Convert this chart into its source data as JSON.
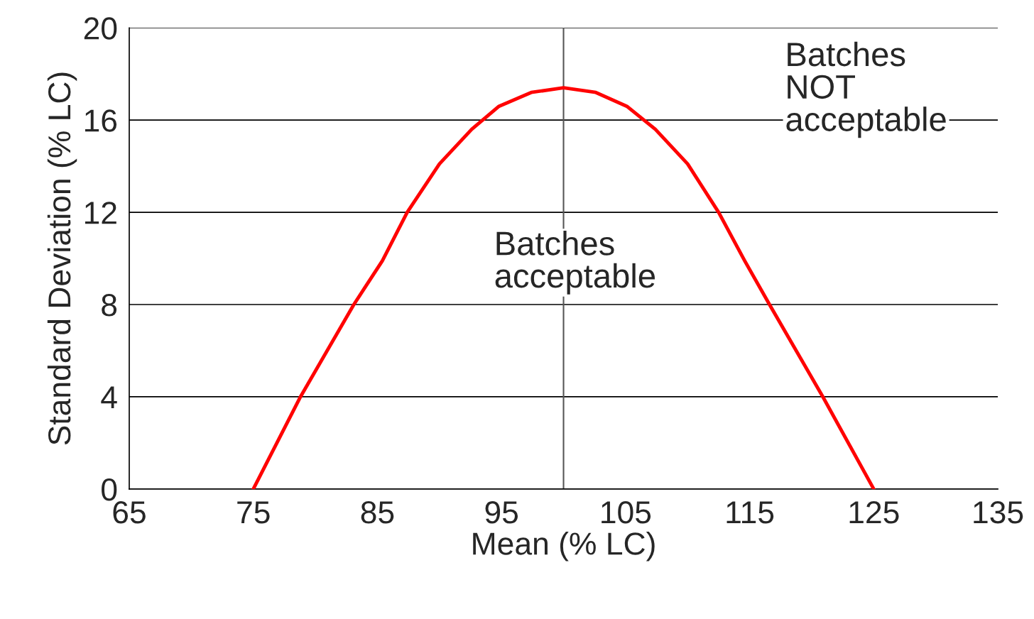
{
  "chart_data": {
    "type": "line",
    "xlabel": "Mean (% LC)",
    "ylabel": "Standard Deviation (% LC)",
    "x": [
      75,
      78.8,
      83.1,
      85.4,
      87.4,
      90.0,
      92.6,
      94.8,
      97.4,
      100,
      102.6,
      105.1,
      107.4,
      110.0,
      112.5,
      114.6,
      116.6,
      120.9,
      125
    ],
    "series": [
      {
        "color": "#ff0000",
        "values": [
          0,
          4,
          8,
          9.9,
          12,
          14.1,
          15.6,
          16.6,
          17.2,
          17.4,
          17.2,
          16.6,
          15.6,
          14.1,
          12,
          9.9,
          8,
          4,
          0
        ]
      }
    ],
    "xlim": [
      65,
      135
    ],
    "xticks": [
      65,
      75,
      85,
      95,
      105,
      115,
      125,
      135
    ],
    "ylim": [
      0,
      20
    ],
    "yticks": [
      0,
      4,
      8,
      12,
      16,
      20
    ],
    "grid": "y",
    "marker": "none",
    "line_style": "solid",
    "ref_lines": [
      {
        "axis": "x",
        "value": 100,
        "color": "#555555"
      }
    ],
    "annotations": [
      "Batches\nNOT\nacceptable",
      "Batches\nacceptable"
    ]
  }
}
